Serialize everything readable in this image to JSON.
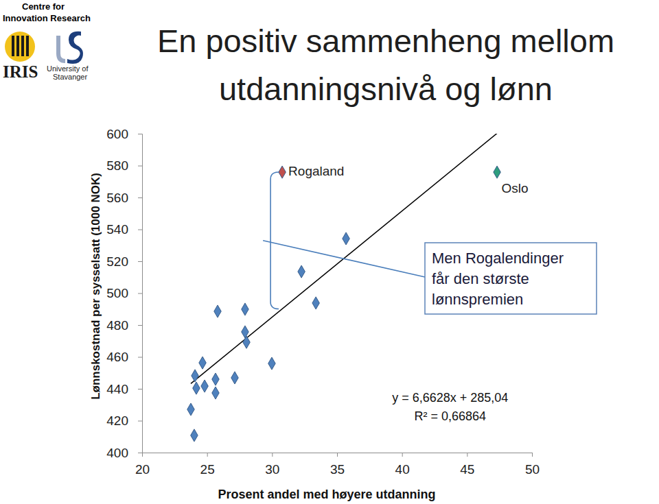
{
  "chart_data": {
    "type": "scatter",
    "title": [
      "En positiv sammenheng mellom",
      "utdanningsnivå og lønn"
    ],
    "logo_texts": [
      "Centre for",
      "Innovation Research",
      "IRIS",
      "University of",
      "Stavanger"
    ],
    "x_label": "Prosent andel med høyere utdanning",
    "y_label": "Lønnskostnad per sysselsatt (1000 NOK)",
    "x": [
      24.01,
      23.75,
      24.07,
      24.17,
      24.65,
      24.81,
      25.65,
      25.65,
      25.81,
      27.13,
      27.92,
      27.92,
      28.03,
      29.98,
      32.26,
      33.37,
      35.69,
      30.78,
      47.31
    ],
    "values": [
      410.8,
      427.1,
      448.2,
      440.4,
      456.3,
      441.7,
      446.0,
      437.4,
      488.6,
      446.9,
      489.9,
      475.7,
      469.2,
      455.9,
      513.5,
      493.8,
      534.2,
      575.9,
      575.9
    ],
    "colors": [
      "#4f81bd",
      "#4f81bd",
      "#4f81bd",
      "#4f81bd",
      "#4f81bd",
      "#4f81bd",
      "#4f81bd",
      "#4f81bd",
      "#4f81bd",
      "#4f81bd",
      "#4f81bd",
      "#4f81bd",
      "#4f81bd",
      "#4f81bd",
      "#4f81bd",
      "#4f81bd",
      "#4f81bd",
      "#c0504d",
      "#2e9e7e"
    ],
    "point_labels": [
      null,
      null,
      null,
      null,
      null,
      null,
      null,
      null,
      null,
      null,
      null,
      null,
      null,
      null,
      null,
      null,
      null,
      "Rogaland",
      "Oslo"
    ],
    "marker": "diamond",
    "xlim": [
      20,
      50
    ],
    "ylim": [
      400,
      600
    ],
    "xticks": [
      20,
      25,
      30,
      35,
      40,
      45,
      50
    ],
    "yticks": [
      400,
      420,
      440,
      460,
      480,
      500,
      520,
      540,
      560,
      580,
      600
    ],
    "grid": false,
    "trendline": {
      "slope": 6.6628,
      "intercept": 285.04,
      "equation": "y = 6,6628x + 285,04",
      "r_squared": "R² = 0,66864"
    },
    "callout": [
      "Men Rogalendinger",
      "får den største",
      "lønnspremien"
    ]
  }
}
